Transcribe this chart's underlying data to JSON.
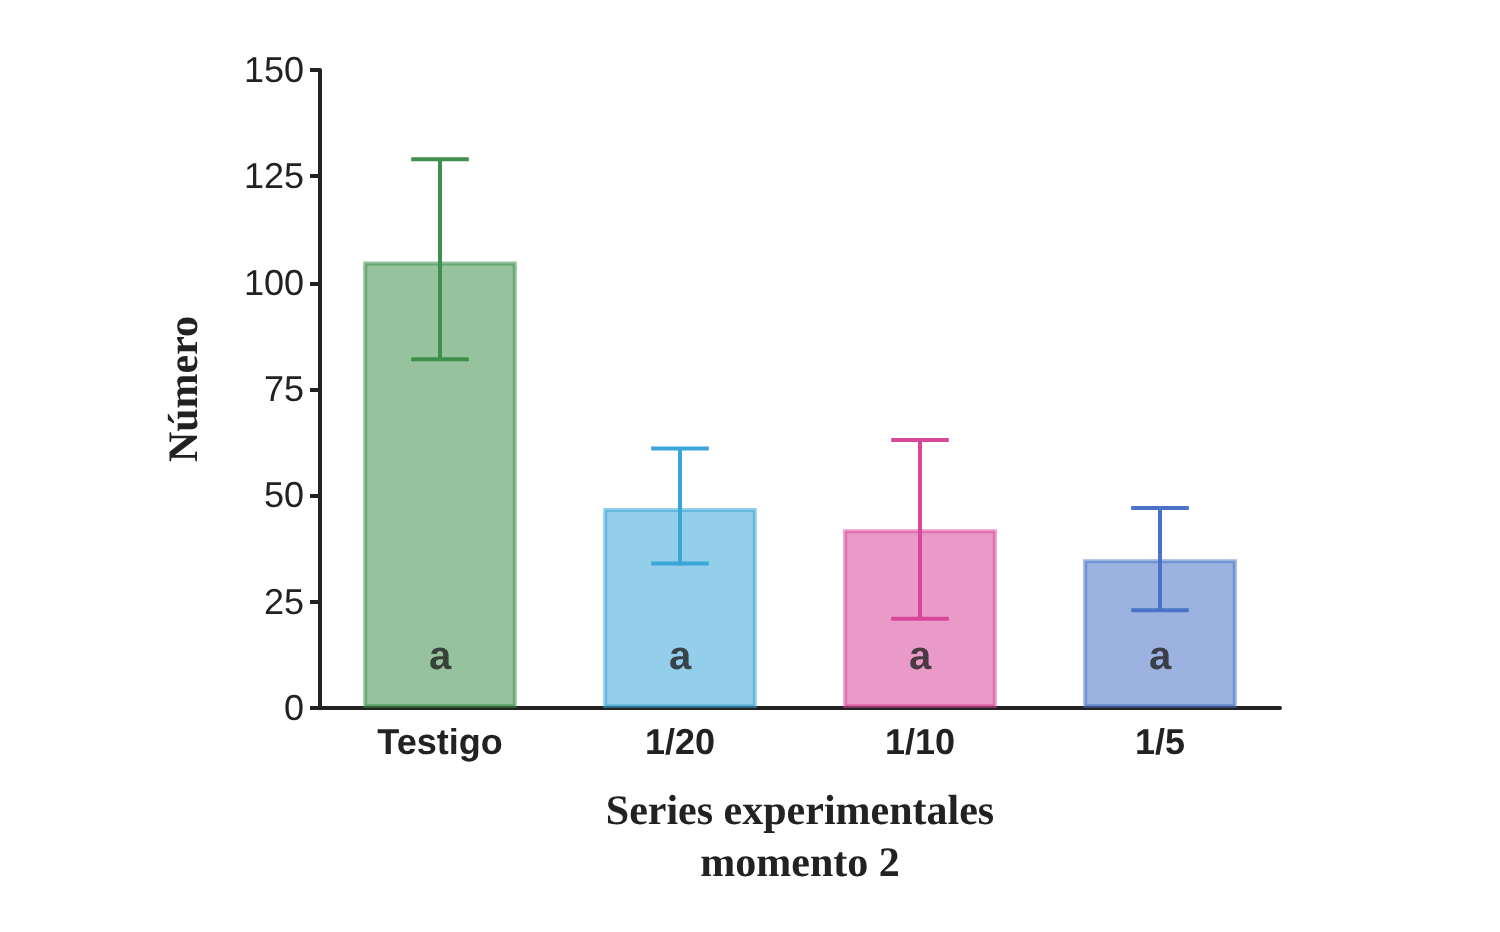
{
  "chart_data": {
    "type": "bar",
    "xlabel": "Series experimentales\nmomento 2",
    "ylabel": "Número",
    "categories": [
      "Testigo",
      "1/20",
      "1/10",
      "1/5"
    ],
    "values": [
      105,
      47,
      42,
      35
    ],
    "errors": [
      [
        82,
        129
      ],
      [
        34,
        61
      ],
      [
        21,
        63
      ],
      [
        23,
        47
      ]
    ],
    "colors": [
      "#3f8f4c",
      "#3aa6d8",
      "#d9479a",
      "#4a72c8"
    ],
    "ylim": [
      0,
      150
    ],
    "yticks": [
      0,
      25,
      50,
      75,
      100,
      125,
      150
    ],
    "grid": false,
    "annotations": [
      "a",
      "a",
      "a",
      "a"
    ]
  }
}
